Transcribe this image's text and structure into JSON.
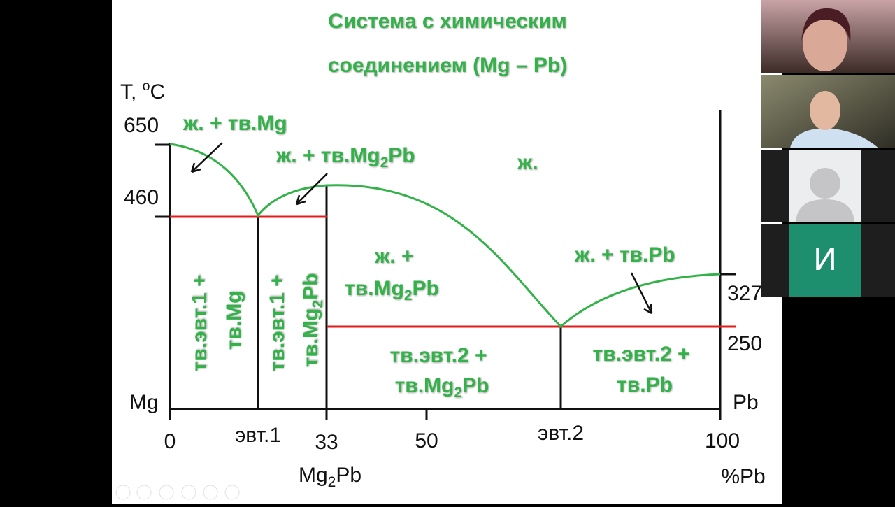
{
  "slide": {
    "title": [
      "Система с химическим",
      "соединением (Mg – Pb)"
    ],
    "y_axis": {
      "label": "T, ",
      "label_sup": "o",
      "label_unit": "C",
      "ticks": [
        "650",
        "460",
        "327",
        "250"
      ]
    },
    "x_axis": {
      "ticks": [
        "0",
        "эвт.1",
        "33",
        "50",
        "эвт.2",
        "100"
      ],
      "compound": {
        "text": "Mg",
        "sub": "2",
        "tail": "Pb"
      },
      "unit": "%Pb"
    },
    "ends": [
      "Mg",
      "Pb"
    ],
    "regions": [
      [
        "ж. + тв.Mg"
      ],
      [
        {
          "text": "ж. + тв.Mg",
          "sub": "2",
          "tail": "Pb"
        }
      ],
      [
        "ж."
      ],
      [
        "ж. +",
        {
          "text": "тв.Mg",
          "sub": "2",
          "tail": "Pb"
        }
      ],
      [
        "ж. + тв.Pb"
      ],
      [
        "тв.эвт.1 +",
        "тв.Mg"
      ],
      [
        "тв.эвт.1 +",
        {
          "text": "тв.Mg",
          "sub": "2",
          "tail": "Pb"
        }
      ],
      [
        "тв.эвт.2 +",
        {
          "text": "тв.Mg",
          "sub": "2",
          "tail": "Pb"
        }
      ],
      [
        "тв.эвт.2 +",
        "тв.Pb"
      ]
    ]
  },
  "participants": {
    "initial": "И"
  }
}
